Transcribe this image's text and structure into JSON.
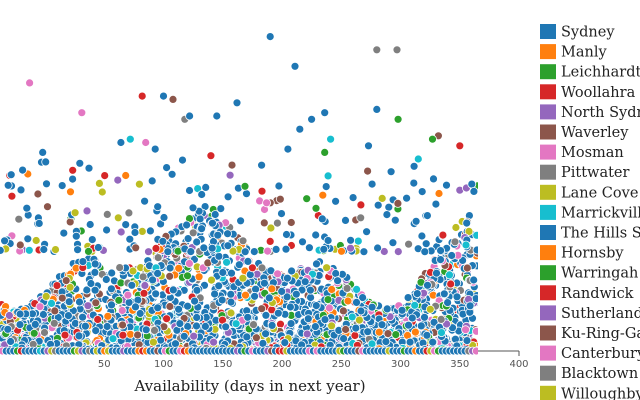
{
  "chart_data": {
    "type": "scatter",
    "xlabel": "Availability (days in next year)",
    "xlim": [
      -38,
      400
    ],
    "xticks": [
      50,
      100,
      150,
      200,
      250,
      300,
      350,
      400
    ],
    "ylim": [
      0,
      100
    ],
    "legend_position": "right",
    "series": [
      {
        "name": "Sydney",
        "color": "#1f77b4"
      },
      {
        "name": "Manly",
        "color": "#ff7f0e"
      },
      {
        "name": "Leichhardt",
        "color": "#2ca02c"
      },
      {
        "name": "Woollahra",
        "color": "#d62728"
      },
      {
        "name": "North Sydney",
        "color": "#9467bd"
      },
      {
        "name": "Waverley",
        "color": "#8c564b"
      },
      {
        "name": "Mosman",
        "color": "#e377c2"
      },
      {
        "name": "Pittwater",
        "color": "#7f7f7f"
      },
      {
        "name": "Lane Cove",
        "color": "#bcbd22"
      },
      {
        "name": "Marrickville",
        "color": "#17becf"
      },
      {
        "name": "The Hills Shire",
        "color": "#1f77b4"
      },
      {
        "name": "Hornsby",
        "color": "#ff7f0e"
      },
      {
        "name": "Warringah",
        "color": "#2ca02c"
      },
      {
        "name": "Randwick",
        "color": "#d62728"
      },
      {
        "name": "Sutherland Shire",
        "color": "#9467bd"
      },
      {
        "name": "Ku-Ring-Gai",
        "color": "#8c564b"
      },
      {
        "name": "Canterbury",
        "color": "#e377c2"
      },
      {
        "name": "Blacktown",
        "color": "#7f7f7f"
      },
      {
        "name": "Willoughby",
        "color": "#bcbd22"
      }
    ],
    "points": [
      {
        "x": 190,
        "y": 95,
        "s": 0
      },
      {
        "x": 280,
        "y": 91,
        "s": 7
      },
      {
        "x": 297,
        "y": 91,
        "s": 7
      },
      {
        "x": 211,
        "y": 86,
        "s": 0
      },
      {
        "x": -13,
        "y": 81,
        "s": 6
      },
      {
        "x": 100,
        "y": 77,
        "s": 0
      },
      {
        "x": 108,
        "y": 76,
        "s": 5
      },
      {
        "x": 82,
        "y": 77,
        "s": 3
      },
      {
        "x": 162,
        "y": 75,
        "s": 0
      },
      {
        "x": 31,
        "y": 72,
        "s": 6
      },
      {
        "x": 145,
        "y": 71,
        "s": 0
      },
      {
        "x": 118,
        "y": 70,
        "s": 7
      },
      {
        "x": 122,
        "y": 71,
        "s": 0
      },
      {
        "x": 236,
        "y": 72,
        "s": 0
      },
      {
        "x": 280,
        "y": 73,
        "s": 0
      },
      {
        "x": 298,
        "y": 70,
        "s": 2
      },
      {
        "x": 225,
        "y": 70,
        "s": 0
      },
      {
        "x": 215,
        "y": 67,
        "s": 0
      },
      {
        "x": 332,
        "y": 65,
        "s": 5
      },
      {
        "x": 327,
        "y": 64,
        "s": 2
      },
      {
        "x": 85,
        "y": 63,
        "s": 6
      },
      {
        "x": 72,
        "y": 64,
        "s": 9
      },
      {
        "x": 64,
        "y": 63,
        "s": 0
      },
      {
        "x": 241,
        "y": 64,
        "s": 9
      },
      {
        "x": 205,
        "y": 61,
        "s": 0
      },
      {
        "x": 273,
        "y": 62,
        "s": 0
      },
      {
        "x": 350,
        "y": 62,
        "s": 3
      },
      {
        "x": -2,
        "y": 60,
        "s": 0
      },
      {
        "x": 93,
        "y": 61,
        "s": 0
      },
      {
        "x": 140,
        "y": 59,
        "s": 3
      },
      {
        "x": 236,
        "y": 60,
        "s": 2
      },
      {
        "x": 315,
        "y": 58,
        "s": 9
      }
    ]
  }
}
